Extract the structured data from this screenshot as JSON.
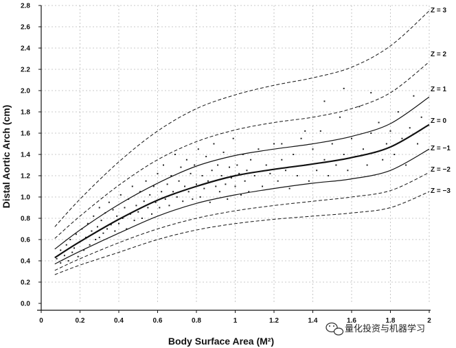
{
  "chart_data": {
    "type": "line",
    "title": "",
    "xlabel": "Body Surface Area (M²)",
    "ylabel": "Distal Aortic Arch (cm)",
    "xlim": [
      0,
      2
    ],
    "ylim": [
      0,
      2.8
    ],
    "x_ticks": [
      "0",
      "0.2",
      "0.4",
      "0.6",
      "0.8",
      "1",
      "1.2",
      "1.4",
      "1.6",
      "1.8",
      "2"
    ],
    "y_ticks": [
      "0.0",
      "0.2",
      "0.4",
      "0.6",
      "0.8",
      "1.0",
      "1.2",
      "1.4",
      "1.6",
      "1.8",
      "2.0",
      "2.2",
      "2.4",
      "2.6",
      "2.8"
    ],
    "grid": true,
    "legend": "curve labels at right end",
    "series": [
      {
        "name": "Z = 3",
        "style": "dashed",
        "x": [
          0.07,
          0.2,
          0.4,
          0.6,
          0.8,
          1.0,
          1.2,
          1.4,
          1.6,
          1.8,
          2.0
        ],
        "y": [
          0.72,
          0.98,
          1.33,
          1.62,
          1.83,
          1.96,
          2.05,
          2.12,
          2.22,
          2.42,
          2.75
        ]
      },
      {
        "name": "Z = 2",
        "style": "dashed",
        "x": [
          0.07,
          0.2,
          0.4,
          0.6,
          0.8,
          1.0,
          1.2,
          1.4,
          1.6,
          1.8,
          2.0
        ],
        "y": [
          0.61,
          0.82,
          1.11,
          1.35,
          1.52,
          1.63,
          1.7,
          1.75,
          1.83,
          1.98,
          2.27
        ]
      },
      {
        "name": "Z = 1",
        "style": "solid",
        "x": [
          0.07,
          0.2,
          0.4,
          0.6,
          0.8,
          1.0,
          1.2,
          1.4,
          1.6,
          1.8,
          2.0
        ],
        "y": [
          0.51,
          0.69,
          0.93,
          1.13,
          1.29,
          1.39,
          1.45,
          1.5,
          1.57,
          1.69,
          1.94
        ]
      },
      {
        "name": "Z = 0",
        "style": "solid-bold",
        "x": [
          0.07,
          0.2,
          0.4,
          0.6,
          0.8,
          1.0,
          1.2,
          1.4,
          1.6,
          1.8,
          2.0
        ],
        "y": [
          0.43,
          0.58,
          0.79,
          0.97,
          1.1,
          1.2,
          1.26,
          1.31,
          1.37,
          1.47,
          1.68
        ]
      },
      {
        "name": "Z = −1",
        "style": "solid",
        "x": [
          0.07,
          0.2,
          0.4,
          0.6,
          0.8,
          1.0,
          1.2,
          1.4,
          1.6,
          1.8,
          2.0
        ],
        "y": [
          0.37,
          0.49,
          0.66,
          0.82,
          0.94,
          1.02,
          1.08,
          1.13,
          1.17,
          1.25,
          1.45
        ]
      },
      {
        "name": "Z = −2",
        "style": "dashed",
        "x": [
          0.07,
          0.2,
          0.4,
          0.6,
          0.8,
          1.0,
          1.2,
          1.4,
          1.6,
          1.8,
          2.0
        ],
        "y": [
          0.31,
          0.42,
          0.57,
          0.7,
          0.8,
          0.87,
          0.92,
          0.96,
          1.0,
          1.06,
          1.23
        ]
      },
      {
        "name": "Z = −3",
        "style": "dashed",
        "x": [
          0.07,
          0.2,
          0.4,
          0.6,
          0.8,
          1.0,
          1.2,
          1.4,
          1.6,
          1.8,
          2.0
        ],
        "y": [
          0.27,
          0.36,
          0.48,
          0.6,
          0.69,
          0.75,
          0.79,
          0.82,
          0.85,
          0.9,
          1.05
        ]
      }
    ],
    "scatter_points": [
      [
        0.08,
        0.42
      ],
      [
        0.1,
        0.38
      ],
      [
        0.1,
        0.5
      ],
      [
        0.12,
        0.45
      ],
      [
        0.13,
        0.55
      ],
      [
        0.14,
        0.4
      ],
      [
        0.15,
        0.6
      ],
      [
        0.16,
        0.48
      ],
      [
        0.17,
        0.52
      ],
      [
        0.18,
        0.65
      ],
      [
        0.19,
        0.44
      ],
      [
        0.2,
        0.58
      ],
      [
        0.21,
        0.7
      ],
      [
        0.22,
        0.5
      ],
      [
        0.23,
        0.62
      ],
      [
        0.24,
        0.75
      ],
      [
        0.25,
        0.55
      ],
      [
        0.26,
        0.68
      ],
      [
        0.27,
        0.82
      ],
      [
        0.28,
        0.6
      ],
      [
        0.29,
        0.72
      ],
      [
        0.3,
        0.9
      ],
      [
        0.3,
        0.62
      ],
      [
        0.31,
        0.78
      ],
      [
        0.32,
        0.66
      ],
      [
        0.33,
        0.85
      ],
      [
        0.34,
        0.7
      ],
      [
        0.35,
        0.95
      ],
      [
        0.36,
        0.74
      ],
      [
        0.37,
        0.88
      ],
      [
        0.38,
        0.68
      ],
      [
        0.39,
        0.82
      ],
      [
        0.4,
        0.75
      ],
      [
        0.41,
        1.02
      ],
      [
        0.42,
        0.8
      ],
      [
        0.43,
        0.9
      ],
      [
        0.44,
        0.7
      ],
      [
        0.45,
        0.98
      ],
      [
        0.46,
        0.84
      ],
      [
        0.47,
        1.1
      ],
      [
        0.48,
        0.78
      ],
      [
        0.49,
        0.92
      ],
      [
        0.5,
        0.86
      ],
      [
        0.51,
        1.05
      ],
      [
        0.52,
        0.8
      ],
      [
        0.53,
        0.96
      ],
      [
        0.54,
        1.15
      ],
      [
        0.55,
        0.9
      ],
      [
        0.56,
        1.02
      ],
      [
        0.57,
        0.84
      ],
      [
        0.58,
        1.1
      ],
      [
        0.59,
        0.95
      ],
      [
        0.6,
        1.22
      ],
      [
        0.61,
        0.9
      ],
      [
        0.62,
        1.05
      ],
      [
        0.63,
        1.3
      ],
      [
        0.64,
        0.98
      ],
      [
        0.65,
        1.12
      ],
      [
        0.66,
        0.92
      ],
      [
        0.67,
        1.2
      ],
      [
        0.68,
        1.05
      ],
      [
        0.69,
        1.4
      ],
      [
        0.7,
        1.0
      ],
      [
        0.71,
        1.15
      ],
      [
        0.72,
        1.28
      ],
      [
        0.73,
        0.96
      ],
      [
        0.74,
        1.1
      ],
      [
        0.75,
        1.35
      ],
      [
        0.76,
        1.05
      ],
      [
        0.77,
        1.22
      ],
      [
        0.78,
        0.98
      ],
      [
        0.79,
        1.3
      ],
      [
        0.8,
        1.12
      ],
      [
        0.81,
        1.45
      ],
      [
        0.82,
        1.0
      ],
      [
        0.83,
        1.2
      ],
      [
        0.84,
        1.08
      ],
      [
        0.85,
        1.38
      ],
      [
        0.86,
        1.15
      ],
      [
        0.87,
        0.95
      ],
      [
        0.88,
        1.25
      ],
      [
        0.89,
        1.5
      ],
      [
        0.9,
        1.1
      ],
      [
        0.91,
        1.3
      ],
      [
        0.92,
        1.05
      ],
      [
        0.93,
        1.2
      ],
      [
        0.94,
        1.42
      ],
      [
        0.95,
        1.12
      ],
      [
        0.96,
        0.98
      ],
      [
        0.97,
        1.28
      ],
      [
        0.98,
        1.18
      ],
      [
        0.99,
        1.55
      ],
      [
        1.0,
        1.1
      ],
      [
        1.01,
        1.3
      ],
      [
        1.02,
        1.22
      ],
      [
        1.03,
        1.02
      ],
      [
        1.04,
        1.4
      ],
      [
        1.05,
        1.15
      ],
      [
        1.06,
        1.25
      ],
      [
        1.07,
        1.05
      ],
      [
        1.08,
        1.35
      ],
      [
        1.1,
        1.2
      ],
      [
        1.12,
        1.45
      ],
      [
        1.14,
        1.1
      ],
      [
        1.16,
        1.3
      ],
      [
        1.18,
        1.22
      ],
      [
        1.2,
        1.5
      ],
      [
        1.22,
        1.15
      ],
      [
        1.24,
        1.35
      ],
      [
        1.26,
        1.25
      ],
      [
        1.28,
        1.08
      ],
      [
        1.3,
        1.4
      ],
      [
        1.32,
        1.2
      ],
      [
        1.34,
        1.55
      ],
      [
        1.36,
        1.3
      ],
      [
        1.38,
        1.15
      ],
      [
        1.4,
        1.45
      ],
      [
        1.42,
        1.25
      ],
      [
        1.44,
        1.62
      ],
      [
        1.46,
        1.35
      ],
      [
        1.48,
        1.2
      ],
      [
        1.5,
        1.5
      ],
      [
        1.52,
        1.3
      ],
      [
        1.54,
        1.75
      ],
      [
        1.56,
        1.4
      ],
      [
        1.58,
        1.25
      ],
      [
        1.6,
        1.55
      ],
      [
        1.62,
        1.38
      ],
      [
        1.64,
        1.85
      ],
      [
        1.66,
        1.45
      ],
      [
        1.68,
        1.3
      ],
      [
        1.7,
        1.6
      ],
      [
        1.72,
        1.42
      ],
      [
        1.74,
        1.7
      ],
      [
        1.76,
        1.35
      ],
      [
        1.78,
        1.5
      ],
      [
        1.8,
        1.62
      ],
      [
        1.82,
        1.4
      ],
      [
        1.84,
        1.8
      ],
      [
        1.86,
        1.55
      ],
      [
        1.88,
        1.3
      ],
      [
        1.9,
        1.65
      ],
      [
        1.92,
        1.95
      ],
      [
        1.94,
        1.5
      ],
      [
        1.96,
        1.75
      ],
      [
        1.56,
        2.02
      ],
      [
        1.46,
        1.9
      ],
      [
        1.7,
        1.98
      ],
      [
        1.36,
        1.62
      ],
      [
        1.24,
        1.5
      ]
    ]
  },
  "watermark": {
    "text": "量化投资与机器学习",
    "icon": "wechat-icon"
  }
}
